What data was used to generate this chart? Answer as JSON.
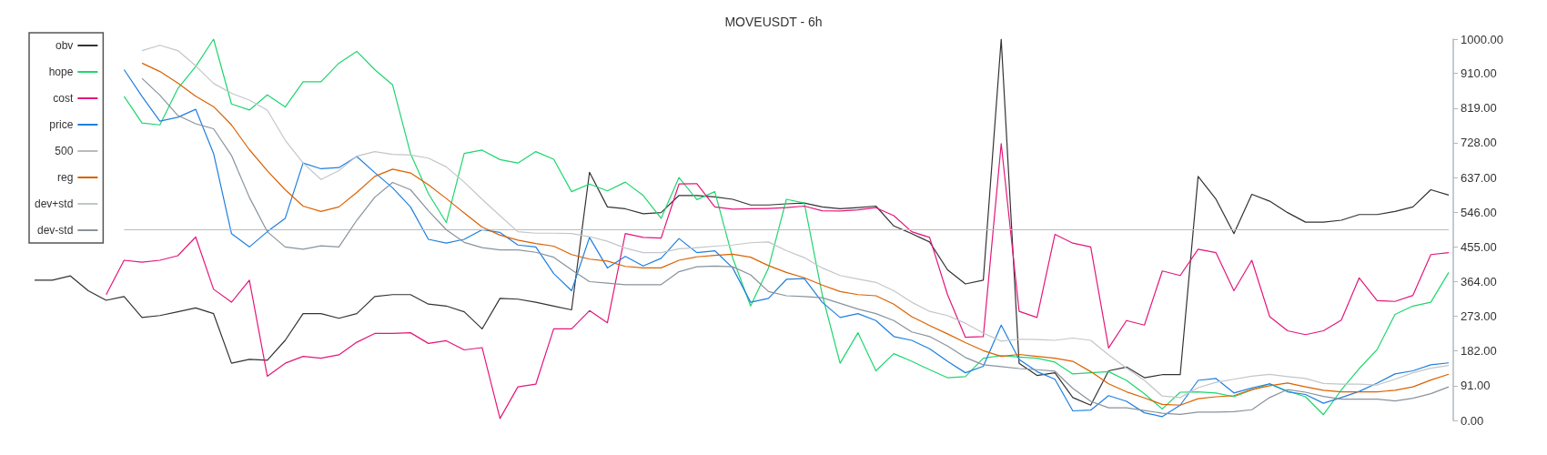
{
  "chart_data": {
    "type": "line",
    "title": "MOVEUSDT - 6h",
    "categories": [
      null,
      null,
      null,
      null,
      null,
      null,
      null,
      null,
      null,
      null,
      null,
      null,
      null,
      null,
      null,
      null,
      null,
      null,
      null,
      null,
      null,
      null,
      null,
      null,
      null,
      null,
      null,
      null,
      null,
      null,
      null,
      null,
      null,
      null,
      null,
      null,
      null,
      null,
      null,
      null,
      null,
      null,
      null,
      null,
      null,
      null,
      null,
      null,
      null,
      null,
      null,
      null,
      null,
      null,
      null,
      null,
      null,
      null,
      null,
      null,
      null,
      null,
      null,
      null,
      null,
      null,
      null,
      null,
      null,
      null,
      null,
      null,
      null,
      null,
      null,
      null,
      null,
      null,
      null,
      null
    ],
    "ylim": [
      0,
      1000
    ],
    "yticks": [
      {
        "value": 0,
        "label": "0.00"
      },
      {
        "value": 91,
        "label": "91.00"
      },
      {
        "value": 182,
        "label": "182.00"
      },
      {
        "value": 273,
        "label": "273.00"
      },
      {
        "value": 364,
        "label": "364.00"
      },
      {
        "value": 455,
        "label": "455.00"
      },
      {
        "value": 546,
        "label": "546.00"
      },
      {
        "value": 637,
        "label": "637.00"
      },
      {
        "value": 728,
        "label": "728.00"
      },
      {
        "value": 819,
        "label": "819.00"
      },
      {
        "value": 910,
        "label": "910.00"
      },
      {
        "value": 1000,
        "label": "1000.00"
      }
    ],
    "grid": false,
    "legend": "top left",
    "tick_labels": "y",
    "series": [
      {
        "name": "obv",
        "color": "#333333",
        "values": [
          368,
          368,
          379,
          340,
          315,
          325,
          270,
          275,
          285,
          295,
          280,
          150,
          160,
          158,
          210,
          280,
          280,
          268,
          280,
          325,
          330,
          330,
          305,
          300,
          285,
          240,
          320,
          318,
          310,
          300,
          290,
          651,
          560,
          555,
          542,
          545,
          590,
          590,
          586,
          580,
          565,
          565,
          568,
          570,
          560,
          555,
          558,
          562,
          510,
          490,
          468,
          395,
          358,
          368,
          1000,
          150,
          118,
          125,
          60,
          40,
          130,
          140,
          112,
          120,
          120,
          640,
          580,
          490,
          593,
          575,
          545,
          520,
          520,
          525,
          540,
          540,
          548,
          560,
          605,
          591
        ]
      },
      {
        "name": "hope",
        "color": "#1ed66e",
        "values": [
          null,
          null,
          null,
          null,
          null,
          850,
          780,
          775,
          870,
          928,
          1000,
          830,
          814,
          854,
          822,
          888,
          888,
          937,
          968,
          920,
          880,
          700,
          595,
          519,
          700,
          709,
          684,
          675,
          705,
          685,
          600,
          620,
          602,
          625,
          590,
          530,
          637,
          579,
          600,
          426,
          300,
          400,
          580,
          570,
          330,
          150,
          230,
          130,
          175,
          155,
          133,
          112,
          115,
          163,
          170,
          166,
          163,
          153,
          122,
          125,
          128,
          105,
          70,
          30,
          74,
          75,
          72,
          62,
          80,
          96,
          77,
          62,
          15,
          80,
          136,
          186,
          278,
          300,
          310,
          388
        ]
      },
      {
        "name": "cost",
        "color": "#e3177b",
        "values": [
          null,
          null,
          null,
          null,
          330,
          420,
          415,
          420,
          432,
          481,
          344,
          310,
          368,
          116,
          150,
          168,
          163,
          172,
          205,
          228,
          228,
          230,
          202,
          209,
          185,
          191,
          5,
          88,
          95,
          240,
          240,
          288,
          256,
          490,
          480,
          478,
          620,
          621,
          560,
          554,
          555,
          556,
          558,
          562,
          550,
          549,
          552,
          558,
          537,
          495,
          480,
          330,
          218,
          220,
          726,
          286,
          270,
          488,
          465,
          455,
          190,
          262,
          250,
          392,
          380,
          449,
          440,
          340,
          420,
          272,
          235,
          225,
          235,
          263,
          374,
          314,
          312,
          328,
          435,
          440
        ]
      },
      {
        "name": "price",
        "color": "#1f7fe0",
        "values": [
          null,
          null,
          null,
          null,
          null,
          920,
          850,
          785,
          795,
          816,
          700,
          490,
          455,
          495,
          530,
          675,
          660,
          663,
          692,
          650,
          610,
          560,
          475,
          465,
          475,
          500,
          493,
          460,
          455,
          385,
          340,
          480,
          400,
          430,
          405,
          425,
          477,
          440,
          445,
          400,
          310,
          320,
          370,
          372,
          310,
          270,
          280,
          262,
          220,
          210,
          188,
          155,
          125,
          142,
          250,
          160,
          128,
          108,
          25,
          27,
          65,
          50,
          20,
          10,
          40,
          105,
          110,
          72,
          85,
          96,
          75,
          68,
          45,
          60,
          76,
          98,
          122,
          130,
          146,
          151
        ]
      },
      {
        "name": "500",
        "color": "#bbbbbb",
        "values": [
          null,
          null,
          null,
          null,
          null,
          500,
          500,
          500,
          500,
          500,
          500,
          500,
          500,
          500,
          500,
          500,
          500,
          500,
          500,
          500,
          500,
          500,
          500,
          500,
          500,
          500,
          500,
          500,
          500,
          500,
          500,
          500,
          500,
          500,
          500,
          500,
          500,
          500,
          500,
          500,
          500,
          500,
          500,
          500,
          500,
          500,
          500,
          500,
          500,
          500,
          500,
          500,
          500,
          500,
          500,
          500,
          500,
          500,
          500,
          500,
          500,
          500,
          500,
          500,
          500,
          500,
          500,
          500,
          500,
          500,
          500,
          500,
          500,
          500,
          500,
          500,
          500,
          500,
          500,
          500
        ]
      },
      {
        "name": "reg",
        "color": "#db6100",
        "values": [
          null,
          null,
          null,
          null,
          null,
          null,
          937,
          915,
          885,
          850,
          823,
          775,
          710,
          655,
          605,
          562,
          548,
          560,
          598,
          640,
          659,
          649,
          618,
          582,
          544,
          507,
          486,
          473,
          464,
          457,
          435,
          423,
          418,
          404,
          400,
          400,
          420,
          429,
          433,
          436,
          428,
          406,
          388,
          374,
          355,
          338,
          330,
          327,
          305,
          272,
          249,
          227,
          204,
          183,
          168,
          173,
          168,
          163,
          155,
          128,
          96,
          75,
          59,
          42,
          40,
          57,
          62,
          65,
          81,
          91,
          98,
          88,
          79,
          75,
          75,
          75,
          79,
          88,
          106,
          121
        ]
      },
      {
        "name": "dev+std",
        "color": "#c2c6ca",
        "values": [
          null,
          null,
          null,
          null,
          null,
          null,
          970,
          984,
          970,
          930,
          884,
          858,
          840,
          814,
          735,
          675,
          632,
          655,
          693,
          705,
          698,
          696,
          688,
          665,
          625,
          580,
          537,
          495,
          491,
          491,
          490,
          482,
          470,
          452,
          440,
          440,
          450,
          453,
          457,
          460,
          466,
          468,
          445,
          427,
          400,
          380,
          371,
          362,
          340,
          310,
          286,
          275,
          255,
          229,
          208,
          213,
          212,
          210,
          216,
          210,
          172,
          137,
          105,
          64,
          60,
          86,
          100,
          108,
          116,
          121,
          115,
          110,
          97,
          95,
          95,
          93,
          108,
          125,
          137,
          144
        ]
      },
      {
        "name": "dev-std",
        "color": "#89939b",
        "values": [
          null,
          null,
          null,
          null,
          null,
          null,
          897,
          853,
          800,
          778,
          765,
          695,
          585,
          495,
          455,
          449,
          458,
          455,
          525,
          585,
          624,
          605,
          550,
          500,
          467,
          453,
          447,
          447,
          441,
          428,
          395,
          364,
          360,
          356,
          356,
          356,
          390,
          403,
          405,
          403,
          382,
          338,
          327,
          325,
          322,
          307,
          292,
          280,
          262,
          232,
          220,
          195,
          165,
          146,
          141,
          136,
          133,
          129,
          84,
          50,
          33,
          33,
          26,
          19,
          16,
          22,
          22,
          23,
          28,
          60,
          81,
          74,
          63,
          56,
          56,
          56,
          51,
          58,
          70,
          88
        ]
      }
    ]
  }
}
